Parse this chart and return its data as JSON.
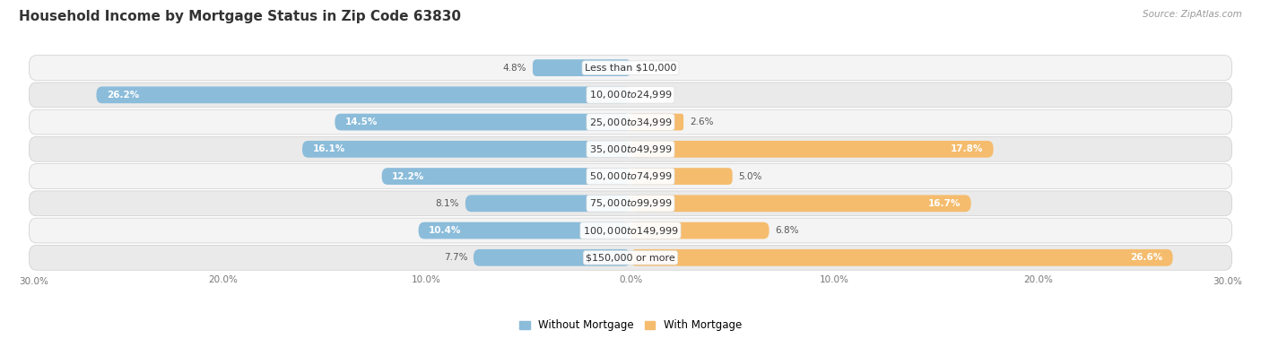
{
  "title": "Household Income by Mortgage Status in Zip Code 63830",
  "source": "Source: ZipAtlas.com",
  "categories": [
    "Less than $10,000",
    "$10,000 to $24,999",
    "$25,000 to $34,999",
    "$35,000 to $49,999",
    "$50,000 to $74,999",
    "$75,000 to $99,999",
    "$100,000 to $149,999",
    "$150,000 or more"
  ],
  "without_mortgage": [
    4.8,
    26.2,
    14.5,
    16.1,
    12.2,
    8.1,
    10.4,
    7.7
  ],
  "with_mortgage": [
    0.0,
    0.0,
    2.6,
    17.8,
    5.0,
    16.7,
    6.8,
    26.6
  ],
  "color_without": "#8BBCDA",
  "color_with": "#F5BC6E",
  "color_without_light": "#C5DCF0",
  "color_with_light": "#FAD9A8",
  "row_bg_odd": "#F4F4F4",
  "row_bg_even": "#EAEAEA",
  "xlim_left": -30,
  "xlim_right": 30,
  "legend_labels": [
    "Without Mortgage",
    "With Mortgage"
  ],
  "bar_height": 0.62,
  "title_fontsize": 11,
  "label_fontsize": 8,
  "value_fontsize": 7.5
}
